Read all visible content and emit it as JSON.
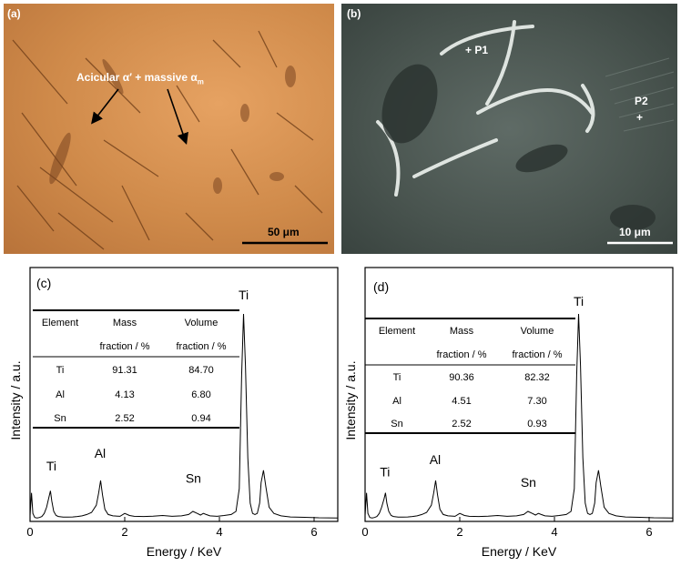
{
  "micrographs": {
    "a": {
      "label": "(a)",
      "annotation_main": "Acicular α′ + massive α",
      "annotation_sub": "m",
      "scale_bar": "50 μm"
    },
    "b": {
      "label": "(b)",
      "points": [
        "P1",
        "P2"
      ],
      "scale_bar": "10 μm"
    }
  },
  "chart_data": [
    {
      "type": "line",
      "panel": "(c)",
      "xlabel": "Energy / KeV",
      "ylabel": "Intensity / a.u.",
      "xlim": [
        0,
        6.5
      ],
      "xticks": [
        0,
        2,
        4,
        6
      ],
      "series": [
        {
          "x": [
            0.0,
            0.03,
            0.06,
            0.1,
            0.15,
            0.2,
            0.25,
            0.3,
            0.35,
            0.4,
            0.43,
            0.46,
            0.5,
            0.55,
            0.6,
            0.7,
            0.8,
            0.9,
            1.0,
            1.1,
            1.2,
            1.3,
            1.4,
            1.45,
            1.49,
            1.53,
            1.58,
            1.65,
            1.75,
            1.9,
            2.0,
            2.1,
            2.2,
            2.4,
            2.6,
            2.8,
            3.0,
            3.2,
            3.35,
            3.44,
            3.53,
            3.6,
            3.66,
            3.72,
            3.8,
            3.95,
            4.1,
            4.25,
            4.35,
            4.42,
            4.47,
            4.51,
            4.55,
            4.6,
            4.65,
            4.7,
            4.75,
            4.8,
            4.85,
            4.88,
            4.93,
            4.98,
            5.05,
            5.15,
            5.3,
            5.5,
            5.8,
            6.1,
            6.5
          ],
          "y": [
            2,
            13,
            3,
            1,
            0.8,
            1,
            1.5,
            3,
            6,
            11,
            14,
            9,
            4,
            2,
            1.5,
            1.2,
            1.2,
            1.3,
            1.5,
            1.8,
            2.5,
            3.5,
            7,
            13,
            19,
            12,
            5,
            2.5,
            1.8,
            1.6,
            3,
            2,
            1.6,
            1.5,
            1.7,
            2,
            1.6,
            1.8,
            2.5,
            4,
            3,
            2.2,
            3,
            2.5,
            1.8,
            1.6,
            2,
            2.5,
            4,
            15,
            70,
            100,
            75,
            30,
            8,
            3,
            2.5,
            3,
            8,
            18,
            24,
            16,
            6,
            3,
            1.8,
            1.3,
            1.1,
            0.9,
            0.8
          ]
        }
      ],
      "peak_labels": [
        {
          "text": "Ti",
          "x": 0.45,
          "y": 24
        },
        {
          "text": "Al",
          "x": 1.48,
          "y": 30
        },
        {
          "text": "Sn",
          "x": 3.45,
          "y": 18
        },
        {
          "text": "Ti",
          "x": 4.51,
          "y": 107
        }
      ],
      "table": {
        "headers": [
          [
            "Element",
            "Mass",
            "Volume"
          ],
          [
            "",
            "fraction / %",
            "fraction / %"
          ]
        ],
        "rows": [
          [
            "Ti",
            "91.31",
            "84.70"
          ],
          [
            "Al",
            "4.13",
            "6.80"
          ],
          [
            "Sn",
            "2.52",
            "0.94"
          ]
        ]
      }
    },
    {
      "type": "line",
      "panel": "(d)",
      "xlabel": "Energy / KeV",
      "ylabel": "Intensity / a.u.",
      "xlim": [
        0,
        6.5
      ],
      "xticks": [
        0,
        2,
        4,
        6
      ],
      "series": [
        {
          "x": [
            0.0,
            0.03,
            0.06,
            0.1,
            0.15,
            0.2,
            0.25,
            0.3,
            0.35,
            0.4,
            0.43,
            0.46,
            0.5,
            0.55,
            0.6,
            0.7,
            0.8,
            0.9,
            1.0,
            1.1,
            1.2,
            1.3,
            1.4,
            1.45,
            1.49,
            1.53,
            1.58,
            1.65,
            1.75,
            1.9,
            2.0,
            2.1,
            2.2,
            2.4,
            2.6,
            2.8,
            3.0,
            3.2,
            3.35,
            3.44,
            3.53,
            3.6,
            3.66,
            3.72,
            3.8,
            3.95,
            4.1,
            4.25,
            4.35,
            4.42,
            4.47,
            4.51,
            4.55,
            4.6,
            4.65,
            4.7,
            4.75,
            4.8,
            4.85,
            4.88,
            4.93,
            4.98,
            5.05,
            5.15,
            5.3,
            5.5,
            5.8,
            6.1,
            6.5
          ],
          "y": [
            2,
            13,
            3,
            1,
            0.8,
            1,
            1.5,
            3,
            6,
            10,
            13,
            8,
            4,
            2,
            1.5,
            1.2,
            1.2,
            1.3,
            1.5,
            1.8,
            2.5,
            3.5,
            7,
            13,
            19,
            12,
            5,
            2.5,
            1.8,
            1.6,
            3,
            2,
            1.6,
            1.5,
            1.7,
            2,
            1.6,
            1.8,
            2.5,
            4,
            3,
            2.2,
            3,
            2.5,
            1.8,
            1.6,
            2,
            2.5,
            4,
            15,
            70,
            100,
            75,
            30,
            8,
            3,
            2.5,
            3,
            8,
            18,
            24,
            16,
            6,
            3,
            1.8,
            1.3,
            1.1,
            0.9,
            0.8
          ]
        }
      ],
      "peak_labels": [
        {
          "text": "Ti",
          "x": 0.42,
          "y": 21
        },
        {
          "text": "Al",
          "x": 1.48,
          "y": 27
        },
        {
          "text": "Sn",
          "x": 3.45,
          "y": 16
        },
        {
          "text": "Ti",
          "x": 4.51,
          "y": 104
        }
      ],
      "table": {
        "headers": [
          [
            "Element",
            "Mass",
            "Volume"
          ],
          [
            "",
            "fraction / %",
            "fraction / %"
          ]
        ],
        "rows": [
          [
            "Ti",
            "90.36",
            "82.32"
          ],
          [
            "Al",
            "4.51",
            "7.30"
          ],
          [
            "Sn",
            "2.52",
            "0.93"
          ]
        ]
      }
    }
  ]
}
